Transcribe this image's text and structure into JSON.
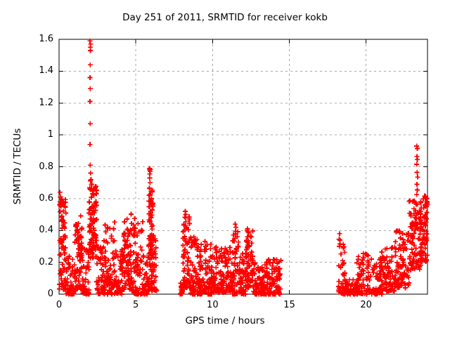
{
  "window": {
    "background": "#ffffff"
  },
  "chart_data": {
    "type": "scatter",
    "title": "Day 251 of 2011, SRMTID for receiver kokb",
    "xlabel": "GPS time / hours",
    "ylabel": "SRMTID / TECUs",
    "xlim": [
      0,
      24
    ],
    "ylim": [
      0,
      1.6
    ],
    "xticks": [
      0,
      5,
      10,
      15,
      20
    ],
    "yticks": [
      0,
      0.2,
      0.4,
      0.6,
      0.8,
      1,
      1.2,
      1.4,
      1.6
    ],
    "grid": true,
    "grid_style": "dashed",
    "grid_color": "#a8a8a8",
    "axis_color": "#000000",
    "legend": "none",
    "marker": {
      "shape": "plus",
      "color": "#ff0000",
      "size": 7
    },
    "seed": 20110251,
    "points": [
      [
        0.06,
        0.64
      ],
      [
        0.1,
        0.61
      ],
      [
        0.08,
        0.58
      ],
      [
        0.13,
        0.55
      ],
      [
        0.3,
        0.57
      ],
      [
        2.02,
        1.59
      ],
      [
        2.05,
        1.57
      ],
      [
        2.03,
        1.55
      ],
      [
        2.04,
        1.53
      ],
      [
        2.03,
        1.44
      ],
      [
        2.02,
        1.36
      ],
      [
        2.03,
        1.29
      ],
      [
        2.02,
        1.21
      ],
      [
        2.03,
        1.07
      ],
      [
        2.02,
        0.94
      ],
      [
        2.03,
        0.81
      ],
      [
        2.05,
        0.76
      ],
      [
        2.08,
        0.72
      ],
      [
        2.12,
        0.69
      ],
      [
        5.88,
        0.79
      ],
      [
        5.92,
        0.785
      ],
      [
        5.9,
        0.78
      ],
      [
        5.94,
        0.77
      ],
      [
        5.91,
        0.755
      ],
      [
        5.9,
        0.73
      ],
      [
        5.92,
        0.7
      ],
      [
        5.89,
        0.665
      ],
      [
        5.91,
        0.625
      ],
      [
        5.93,
        0.585
      ],
      [
        5.9,
        0.55
      ],
      [
        5.97,
        0.51
      ],
      [
        6.0,
        0.48
      ],
      [
        6.03,
        0.44
      ],
      [
        8.22,
        0.52
      ],
      [
        8.25,
        0.5
      ],
      [
        8.23,
        0.48
      ],
      [
        8.26,
        0.455
      ],
      [
        8.24,
        0.43
      ],
      [
        8.28,
        0.41
      ],
      [
        8.78,
        0.36
      ],
      [
        8.81,
        0.34
      ],
      [
        8.84,
        0.31
      ],
      [
        9.5,
        0.33
      ],
      [
        9.54,
        0.3
      ],
      [
        9.47,
        0.28
      ],
      [
        11.47,
        0.44
      ],
      [
        11.52,
        0.42
      ],
      [
        11.5,
        0.395
      ],
      [
        11.46,
        0.35
      ],
      [
        11.54,
        0.28
      ],
      [
        11.57,
        0.27
      ],
      [
        12.27,
        0.41
      ],
      [
        12.31,
        0.39
      ],
      [
        12.28,
        0.36
      ],
      [
        12.32,
        0.335
      ],
      [
        12.29,
        0.31
      ],
      [
        18.27,
        0.38
      ],
      [
        18.24,
        0.345
      ],
      [
        18.3,
        0.315
      ],
      [
        18.26,
        0.3
      ],
      [
        23.3,
        0.93
      ],
      [
        23.34,
        0.915
      ],
      [
        23.31,
        0.865
      ],
      [
        23.33,
        0.845
      ],
      [
        23.3,
        0.815
      ],
      [
        23.32,
        0.765
      ],
      [
        23.36,
        0.735
      ],
      [
        23.31,
        0.69
      ],
      [
        23.34,
        0.655
      ],
      [
        23.3,
        0.625
      ],
      [
        23.95,
        0.6
      ],
      [
        23.98,
        0.57
      ],
      [
        23.92,
        0.55
      ]
    ],
    "clusters": [
      {
        "x": [
          0.02,
          0.45
        ],
        "y": [
          0.02,
          0.62
        ],
        "n": 70,
        "skew": 1.4
      },
      {
        "x": [
          0.45,
          1.0
        ],
        "y": [
          0.0,
          0.28
        ],
        "n": 55,
        "skew": 1.8
      },
      {
        "x": [
          1.0,
          1.55
        ],
        "y": [
          0.03,
          0.5
        ],
        "n": 70,
        "skew": 1.5
      },
      {
        "x": [
          1.55,
          1.95
        ],
        "y": [
          0.0,
          0.3
        ],
        "n": 45,
        "skew": 1.8
      },
      {
        "x": [
          1.95,
          2.45
        ],
        "y": [
          0.22,
          0.72
        ],
        "n": 100,
        "skew": 1.1
      },
      {
        "x": [
          2.45,
          2.95
        ],
        "y": [
          0.0,
          0.35
        ],
        "n": 55,
        "skew": 1.8
      },
      {
        "x": [
          2.95,
          3.65
        ],
        "y": [
          0.0,
          0.46
        ],
        "n": 80,
        "skew": 1.7
      },
      {
        "x": [
          3.65,
          4.2
        ],
        "y": [
          0.0,
          0.28
        ],
        "n": 50,
        "skew": 1.8
      },
      {
        "x": [
          4.2,
          4.75
        ],
        "y": [
          0.03,
          0.51
        ],
        "n": 70,
        "skew": 1.5
      },
      {
        "x": [
          4.75,
          5.45
        ],
        "y": [
          0.0,
          0.54
        ],
        "n": 80,
        "skew": 2.2
      },
      {
        "x": [
          5.45,
          5.85
        ],
        "y": [
          0.0,
          0.24
        ],
        "n": 35,
        "skew": 1.6
      },
      {
        "x": [
          5.82,
          6.12
        ],
        "y": [
          0.3,
          0.66
        ],
        "n": 40,
        "skew": 1.2
      },
      {
        "x": [
          5.85,
          6.35
        ],
        "y": [
          0.02,
          0.38
        ],
        "n": 75,
        "skew": 1.4
      },
      {
        "x": [
          7.88,
          8.04
        ],
        "y": [
          0.0,
          0.08
        ],
        "n": 22,
        "skew": 2.0
      },
      {
        "x": [
          8.05,
          8.55
        ],
        "y": [
          0.04,
          0.5
        ],
        "n": 65,
        "skew": 1.7
      },
      {
        "x": [
          8.55,
          9.05
        ],
        "y": [
          0.0,
          0.36
        ],
        "n": 50,
        "skew": 2.0
      },
      {
        "x": [
          9.05,
          10.0
        ],
        "y": [
          0.0,
          0.32
        ],
        "n": 100,
        "skew": 2.0
      },
      {
        "x": [
          10.0,
          11.3
        ],
        "y": [
          0.01,
          0.3
        ],
        "n": 130,
        "skew": 1.7
      },
      {
        "x": [
          11.3,
          11.7
        ],
        "y": [
          0.0,
          0.4
        ],
        "n": 45,
        "skew": 1.7
      },
      {
        "x": [
          11.7,
          12.15
        ],
        "y": [
          0.0,
          0.27
        ],
        "n": 45,
        "skew": 1.7
      },
      {
        "x": [
          12.15,
          12.65
        ],
        "y": [
          0.04,
          0.4
        ],
        "n": 65,
        "skew": 1.4
      },
      {
        "x": [
          12.65,
          13.5
        ],
        "y": [
          0.0,
          0.2
        ],
        "n": 90,
        "skew": 1.9
      },
      {
        "x": [
          13.5,
          14.45
        ],
        "y": [
          0.0,
          0.22
        ],
        "n": 90,
        "skew": 1.9
      },
      {
        "x": [
          18.2,
          18.65
        ],
        "y": [
          0.0,
          0.34
        ],
        "n": 40,
        "skew": 2.0
      },
      {
        "x": [
          18.6,
          19.5
        ],
        "y": [
          0.0,
          0.1
        ],
        "n": 65,
        "skew": 1.7
      },
      {
        "x": [
          19.4,
          20.1
        ],
        "y": [
          0.0,
          0.26
        ],
        "n": 55,
        "skew": 2.0
      },
      {
        "x": [
          20.1,
          21.1
        ],
        "y": [
          0.0,
          0.25
        ],
        "n": 75,
        "skew": 1.9
      },
      {
        "x": [
          21.0,
          21.9
        ],
        "y": [
          0.02,
          0.3
        ],
        "n": 75,
        "skew": 1.6
      },
      {
        "x": [
          21.9,
          22.8
        ],
        "y": [
          0.04,
          0.4
        ],
        "n": 85,
        "skew": 1.5
      },
      {
        "x": [
          22.8,
          23.6
        ],
        "y": [
          0.15,
          0.6
        ],
        "n": 90,
        "skew": 1.1
      },
      {
        "x": [
          23.5,
          24.0
        ],
        "y": [
          0.2,
          0.62
        ],
        "n": 70,
        "skew": 1.0
      }
    ]
  }
}
